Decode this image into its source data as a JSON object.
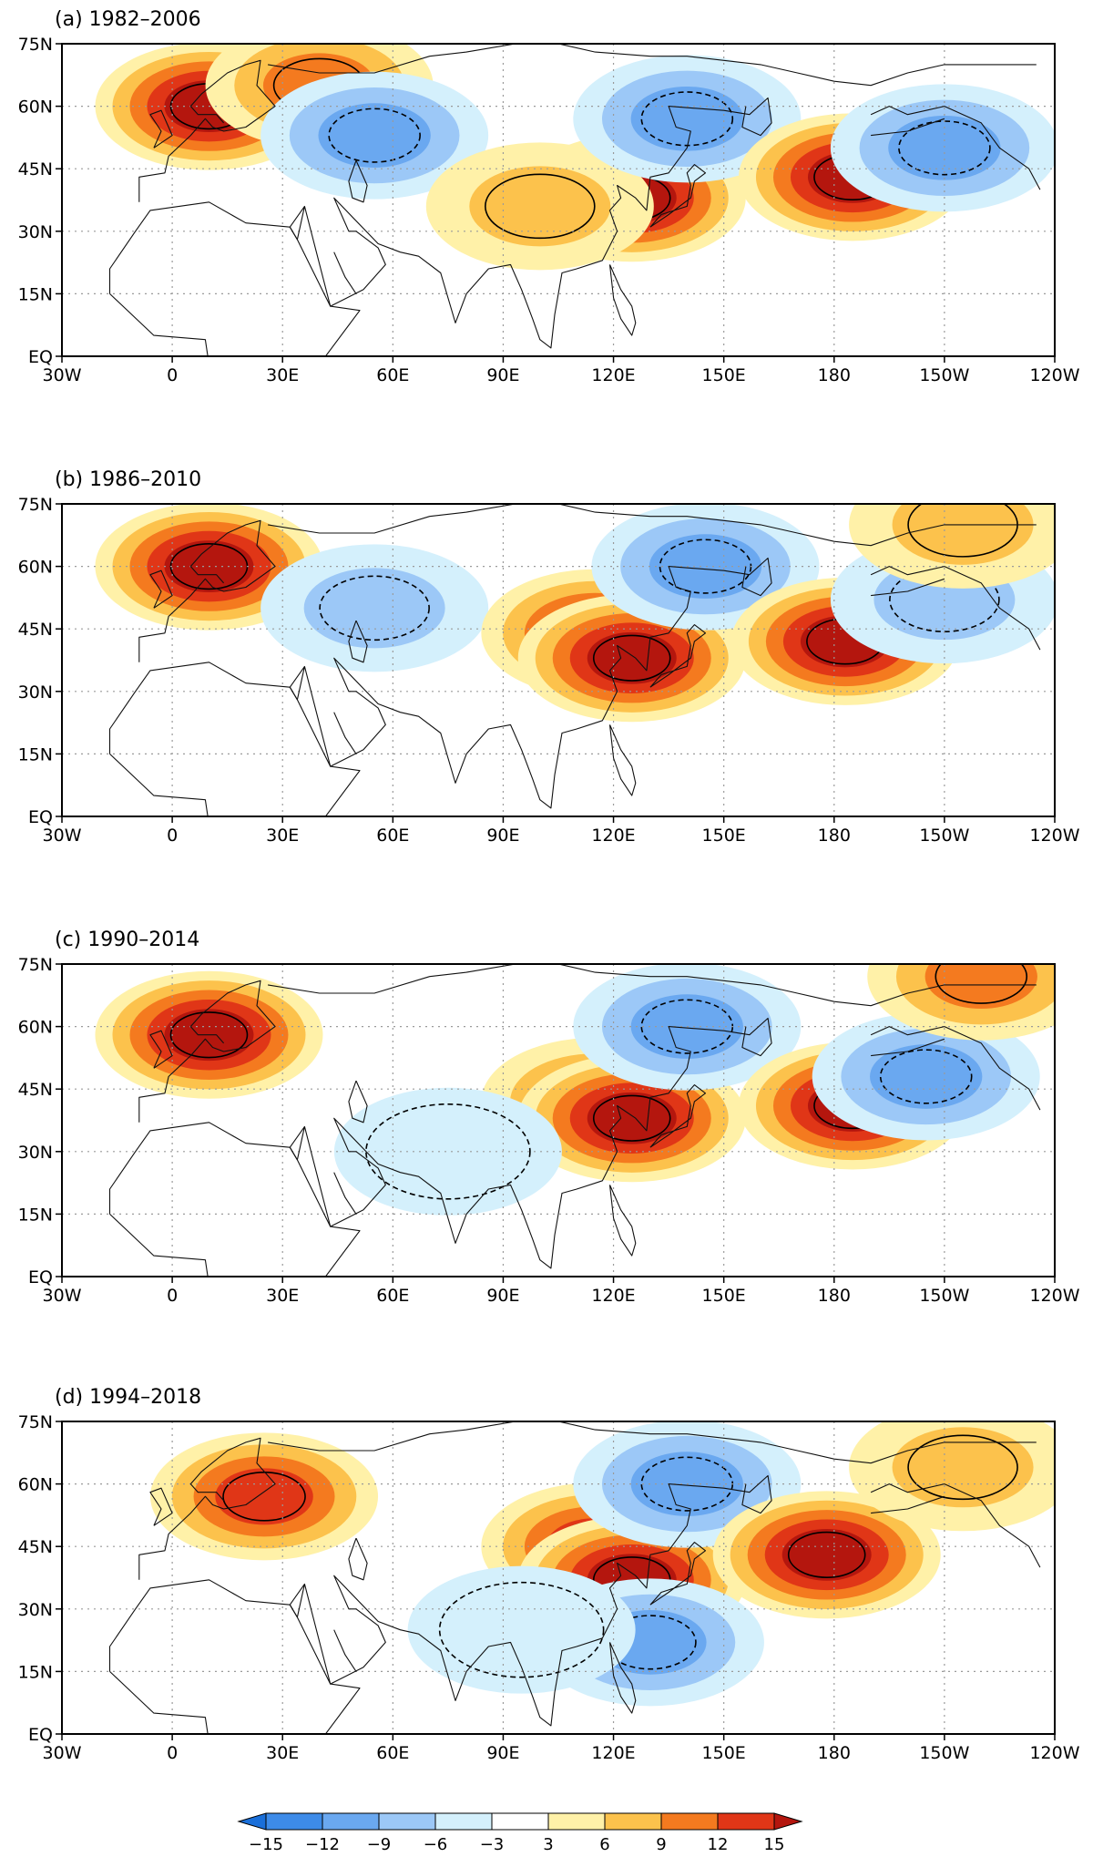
{
  "panels": [
    {
      "label": "(a)  1982–2006"
    },
    {
      "label": "(b)  1986–2010"
    },
    {
      "label": "(c)  1990–2014"
    },
    {
      "label": "(d)  1994–2018"
    }
  ],
  "axes": {
    "lon_ticks": [
      "30W",
      "0",
      "30E",
      "60E",
      "90E",
      "120E",
      "150E",
      "180",
      "150W",
      "120W"
    ],
    "lat_ticks": [
      "75N",
      "60N",
      "45N",
      "30N",
      "15N",
      "EQ"
    ]
  },
  "colorbar": {
    "labels": [
      "−15",
      "−12",
      "−9",
      "−6",
      "−3",
      "3",
      "6",
      "9",
      "12",
      "15"
    ],
    "colors": [
      "#1a6fd9",
      "#3d8be8",
      "#6aa8f0",
      "#9cc8f7",
      "#d4f0fc",
      "#ffffff",
      "#fff1a8",
      "#fcc24c",
      "#f47a1f",
      "#e03617",
      "#b4160e"
    ]
  },
  "anomalies": [
    [
      {
        "lon": 10,
        "lat": 60,
        "sign": 1,
        "level": 5
      },
      {
        "lon": 40,
        "lat": 65,
        "sign": 1,
        "level": 3
      },
      {
        "lon": 55,
        "lat": 53,
        "sign": -1,
        "level": 3
      },
      {
        "lon": 125,
        "lat": 38,
        "sign": 1,
        "level": 5
      },
      {
        "lon": 100,
        "lat": 36,
        "sign": 1,
        "level": 2
      },
      {
        "lon": 140,
        "lat": 57,
        "sign": -1,
        "level": 3
      },
      {
        "lon": 185,
        "lat": 43,
        "sign": 1,
        "level": 5
      },
      {
        "lon": 210,
        "lat": 50,
        "sign": -1,
        "level": 3
      }
    ],
    [
      {
        "lon": 10,
        "lat": 60,
        "sign": 1,
        "level": 5
      },
      {
        "lon": 55,
        "lat": 50,
        "sign": -1,
        "level": 2
      },
      {
        "lon": 115,
        "lat": 44,
        "sign": 1,
        "level": 4
      },
      {
        "lon": 125,
        "lat": 38,
        "sign": 1,
        "level": 5
      },
      {
        "lon": 145,
        "lat": 60,
        "sign": -1,
        "level": 3
      },
      {
        "lon": 183,
        "lat": 42,
        "sign": 1,
        "level": 5
      },
      {
        "lon": 210,
        "lat": 52,
        "sign": -1,
        "level": 2
      },
      {
        "lon": 215,
        "lat": 70,
        "sign": 1,
        "level": 2
      }
    ],
    [
      {
        "lon": 10,
        "lat": 58,
        "sign": 1,
        "level": 5
      },
      {
        "lon": 115,
        "lat": 42,
        "sign": 1,
        "level": 3
      },
      {
        "lon": 125,
        "lat": 38,
        "sign": 1,
        "level": 5
      },
      {
        "lon": 140,
        "lat": 60,
        "sign": -1,
        "level": 3
      },
      {
        "lon": 185,
        "lat": 41,
        "sign": 1,
        "level": 5
      },
      {
        "lon": 205,
        "lat": 48,
        "sign": -1,
        "level": 3
      },
      {
        "lon": 220,
        "lat": 72,
        "sign": 1,
        "level": 3
      },
      {
        "lon": 75,
        "lat": 30,
        "sign": -1,
        "level": 1
      }
    ],
    [
      {
        "lon": 25,
        "lat": 57,
        "sign": 1,
        "level": 4
      },
      {
        "lon": 115,
        "lat": 45,
        "sign": 1,
        "level": 4
      },
      {
        "lon": 125,
        "lat": 37,
        "sign": 1,
        "level": 5
      },
      {
        "lon": 140,
        "lat": 60,
        "sign": -1,
        "level": 3
      },
      {
        "lon": 130,
        "lat": 22,
        "sign": -1,
        "level": 3
      },
      {
        "lon": 178,
        "lat": 43,
        "sign": 1,
        "level": 5
      },
      {
        "lon": 215,
        "lat": 64,
        "sign": 1,
        "level": 2
      },
      {
        "lon": 95,
        "lat": 25,
        "sign": -1,
        "level": 1
      }
    ]
  ]
}
